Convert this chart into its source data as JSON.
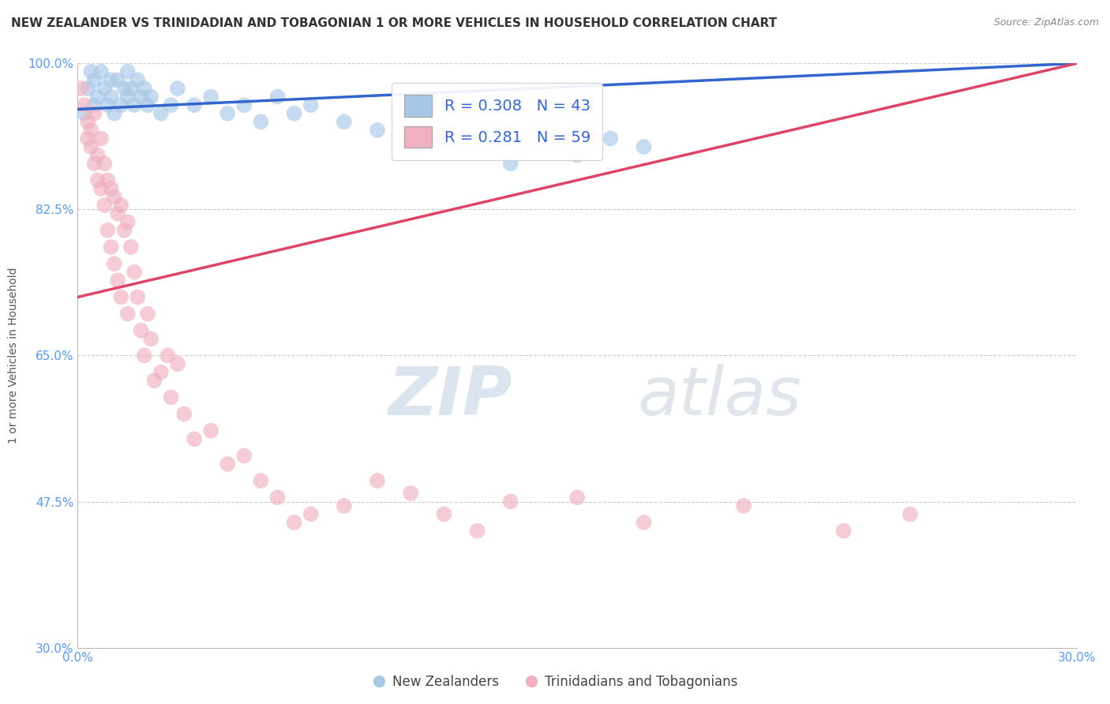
{
  "title": "NEW ZEALANDER VS TRINIDADIAN AND TOBAGONIAN 1 OR MORE VEHICLES IN HOUSEHOLD CORRELATION CHART",
  "source": "Source: ZipAtlas.com",
  "xlabel": "",
  "ylabel": "1 or more Vehicles in Household",
  "xlim": [
    0.0,
    30.0
  ],
  "ylim": [
    30.0,
    100.0
  ],
  "xticks": [
    0.0,
    30.0
  ],
  "yticks": [
    30.0,
    47.5,
    65.0,
    82.5,
    100.0
  ],
  "xtick_labels": [
    "0.0%",
    "30.0%"
  ],
  "ytick_labels": [
    "30.0%",
    "47.5%",
    "65.0%",
    "82.5%",
    "100.0%"
  ],
  "legend_labels": [
    "New Zealanders",
    "Trinidadians and Tobagonians"
  ],
  "r_blue": 0.308,
  "n_blue": 43,
  "r_pink": 0.281,
  "n_pink": 59,
  "blue_color": "#a8c8e8",
  "pink_color": "#f0b0c0",
  "blue_line_color": "#3366cc",
  "pink_line_color": "#dd4466",
  "watermark_zip": "ZIP",
  "watermark_atlas": "atlas",
  "background_color": "#ffffff",
  "title_fontsize": 11,
  "axis_label_fontsize": 10,
  "tick_fontsize": 11,
  "blue_scatter_x": [
    0.2,
    0.3,
    0.4,
    0.5,
    0.5,
    0.6,
    0.7,
    0.8,
    0.9,
    1.0,
    1.0,
    1.1,
    1.2,
    1.3,
    1.4,
    1.5,
    1.5,
    1.6,
    1.7,
    1.8,
    1.9,
    2.0,
    2.1,
    2.2,
    2.5,
    2.8,
    3.0,
    3.5,
    4.0,
    4.5,
    5.0,
    5.5,
    6.0,
    6.5,
    7.0,
    8.0,
    9.0,
    10.0,
    11.0,
    13.0,
    15.0,
    16.0,
    17.0
  ],
  "blue_scatter_y": [
    94.0,
    97.0,
    99.0,
    95.0,
    98.0,
    96.0,
    99.0,
    97.0,
    95.0,
    98.0,
    96.0,
    94.0,
    98.0,
    95.0,
    97.0,
    96.0,
    99.0,
    97.0,
    95.0,
    98.0,
    96.0,
    97.0,
    95.0,
    96.0,
    94.0,
    95.0,
    97.0,
    95.0,
    96.0,
    94.0,
    95.0,
    93.0,
    96.0,
    94.0,
    95.0,
    93.0,
    92.0,
    90.0,
    91.0,
    88.0,
    89.0,
    91.0,
    90.0
  ],
  "pink_scatter_x": [
    0.1,
    0.2,
    0.3,
    0.3,
    0.4,
    0.4,
    0.5,
    0.5,
    0.6,
    0.6,
    0.7,
    0.7,
    0.8,
    0.8,
    0.9,
    0.9,
    1.0,
    1.0,
    1.1,
    1.1,
    1.2,
    1.2,
    1.3,
    1.3,
    1.4,
    1.5,
    1.5,
    1.6,
    1.7,
    1.8,
    1.9,
    2.0,
    2.1,
    2.2,
    2.3,
    2.5,
    2.7,
    2.8,
    3.0,
    3.2,
    3.5,
    4.0,
    4.5,
    5.0,
    5.5,
    6.0,
    6.5,
    7.0,
    8.0,
    9.0,
    10.0,
    11.0,
    12.0,
    13.0,
    15.0,
    17.0,
    20.0,
    23.0,
    25.0
  ],
  "pink_scatter_y": [
    97.0,
    95.0,
    93.0,
    91.0,
    92.0,
    90.0,
    94.0,
    88.0,
    89.0,
    86.0,
    91.0,
    85.0,
    88.0,
    83.0,
    86.0,
    80.0,
    85.0,
    78.0,
    84.0,
    76.0,
    82.0,
    74.0,
    83.0,
    72.0,
    80.0,
    81.0,
    70.0,
    78.0,
    75.0,
    72.0,
    68.0,
    65.0,
    70.0,
    67.0,
    62.0,
    63.0,
    65.0,
    60.0,
    64.0,
    58.0,
    55.0,
    56.0,
    52.0,
    53.0,
    50.0,
    48.0,
    45.0,
    46.0,
    47.0,
    50.0,
    48.5,
    46.0,
    44.0,
    47.5,
    48.0,
    45.0,
    47.0,
    44.0,
    46.0
  ],
  "blue_trend_x0": 0.0,
  "blue_trend_x1": 30.0,
  "blue_trend_y0": 94.5,
  "blue_trend_y1": 100.0,
  "pink_trend_x0": 0.0,
  "pink_trend_x1": 30.0,
  "pink_trend_y0": 72.0,
  "pink_trend_y1": 100.0
}
